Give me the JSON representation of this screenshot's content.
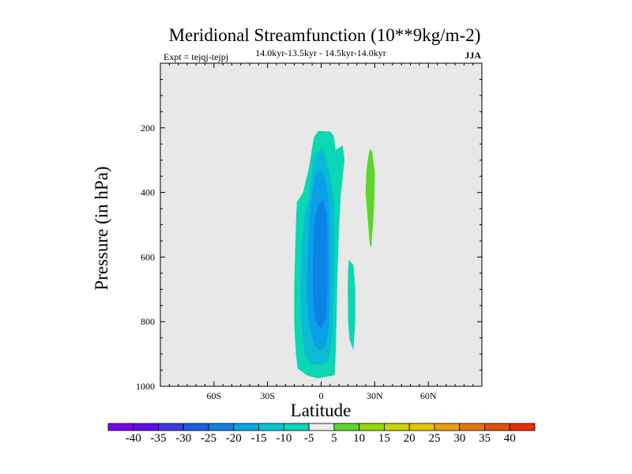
{
  "chart_data": {
    "type": "contour",
    "title": "Meridional Streamfunction (10**9kg/m-2)",
    "left_string": "Expt = tejqj-tejpj",
    "center_string": "14.0kyr-13.5kyr - 14.5kyr-14.0kyr",
    "right_string": "JJA",
    "xlabel": "Latitude",
    "ylabel": "Pressure (in hPa)",
    "xlim": [
      -90,
      90
    ],
    "ylim": [
      1000,
      0
    ],
    "xticks": [
      {
        "value": -60,
        "label": "60S"
      },
      {
        "value": -30,
        "label": "30S"
      },
      {
        "value": 0,
        "label": "0"
      },
      {
        "value": 30,
        "label": "30N"
      },
      {
        "value": 60,
        "label": "60N"
      }
    ],
    "yticks": [
      {
        "value": 200,
        "label": "200"
      },
      {
        "value": 400,
        "label": "400"
      },
      {
        "value": 600,
        "label": "600"
      },
      {
        "value": 800,
        "label": "800"
      },
      {
        "value": 1000,
        "label": "1000"
      }
    ],
    "background_color": "#e8e8e8",
    "contour_regions": [
      {
        "level": -10,
        "color": "#0ad7b4",
        "points": [
          [
            -1.5,
            210
          ],
          [
            5,
            212
          ],
          [
            7,
            225
          ],
          [
            8,
            270
          ],
          [
            12,
            255
          ],
          [
            13,
            300
          ],
          [
            11,
            400
          ],
          [
            10,
            500
          ],
          [
            9,
            650
          ],
          [
            8.5,
            800
          ],
          [
            8,
            900
          ],
          [
            7.5,
            965
          ],
          [
            -2,
            975
          ],
          [
            -8,
            965
          ],
          [
            -13,
            945
          ],
          [
            -14,
            900
          ],
          [
            -15,
            800
          ],
          [
            -15,
            700
          ],
          [
            -14.5,
            600
          ],
          [
            -14,
            500
          ],
          [
            -13.5,
            430
          ],
          [
            -10,
            400
          ],
          [
            -7,
            330
          ],
          [
            -6,
            300
          ],
          [
            -4,
            230
          ]
        ]
      },
      {
        "level": -15,
        "color": "#0abbd6",
        "points": [
          [
            -4,
            280
          ],
          [
            1,
            270
          ],
          [
            3,
            300
          ],
          [
            5,
            350
          ],
          [
            7,
            420
          ],
          [
            7.5,
            550
          ],
          [
            7,
            700
          ],
          [
            6,
            850
          ],
          [
            4,
            920
          ],
          [
            0,
            935
          ],
          [
            -5,
            930
          ],
          [
            -9,
            900
          ],
          [
            -11,
            800
          ],
          [
            -11.5,
            700
          ],
          [
            -11,
            600
          ],
          [
            -10,
            520
          ],
          [
            -9,
            470
          ],
          [
            -7,
            430
          ],
          [
            -6,
            380
          ]
        ]
      },
      {
        "level": -20,
        "color": "#0aa0e6",
        "points": [
          [
            -3,
            340
          ],
          [
            0,
            330
          ],
          [
            2.5,
            360
          ],
          [
            4,
            420
          ],
          [
            5,
            520
          ],
          [
            5,
            700
          ],
          [
            4,
            830
          ],
          [
            2,
            880
          ],
          [
            -1,
            890
          ],
          [
            -4,
            870
          ],
          [
            -7,
            800
          ],
          [
            -8,
            700
          ],
          [
            -7.5,
            600
          ],
          [
            -6.5,
            480
          ],
          [
            -5,
            400
          ]
        ]
      },
      {
        "level": -25,
        "color": "#0a82e6",
        "points": [
          [
            -1.5,
            440
          ],
          [
            1,
            420
          ],
          [
            3,
            470
          ],
          [
            3.5,
            550
          ],
          [
            3.5,
            700
          ],
          [
            2.5,
            790
          ],
          [
            0,
            820
          ],
          [
            -3,
            800
          ],
          [
            -4.5,
            720
          ],
          [
            -4.5,
            600
          ],
          [
            -4,
            520
          ],
          [
            -3,
            470
          ]
        ]
      },
      {
        "level": -10,
        "color": "#0ad7b4",
        "points": [
          [
            15.5,
            610
          ],
          [
            18,
            625
          ],
          [
            19,
            700
          ],
          [
            19,
            800
          ],
          [
            18,
            885
          ],
          [
            16,
            855
          ],
          [
            15.2,
            800
          ],
          [
            15,
            700
          ],
          [
            15.2,
            640
          ]
        ]
      },
      {
        "level": 10,
        "color": "#5ad72a",
        "points": [
          [
            27.5,
            265
          ],
          [
            28.5,
            275
          ],
          [
            30,
            340
          ],
          [
            29.5,
            450
          ],
          [
            28,
            570
          ],
          [
            27.3,
            560
          ],
          [
            26.5,
            500
          ],
          [
            25,
            400
          ],
          [
            25.5,
            330
          ],
          [
            26.5,
            290
          ]
        ]
      }
    ],
    "colorbar": {
      "levels": [
        "-40",
        "-35",
        "-30",
        "-25",
        "-20",
        "-15",
        "-10",
        "-5",
        "5",
        "10",
        "15",
        "20",
        "25",
        "30",
        "35",
        "40"
      ],
      "colors": [
        "#7a00e6",
        "#5a10e6",
        "#3a3ae6",
        "#1e5ee6",
        "#1282e6",
        "#0aa6e6",
        "#0ac4d6",
        "#0ad7b4",
        "#ececec",
        "#5ad72a",
        "#96d70a",
        "#c8d20a",
        "#e6c30a",
        "#e6a00a",
        "#e6780a",
        "#e6500a",
        "#e62d0a"
      ]
    }
  }
}
